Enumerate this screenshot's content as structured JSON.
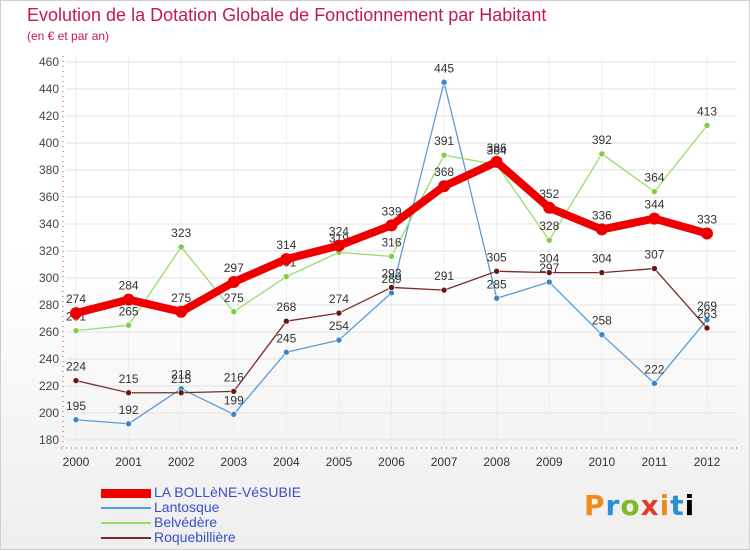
{
  "title": "Evolution de la Dotation Globale de Fonctionnement par Habitant",
  "subtitle": "(en € et par an)",
  "logo": [
    "P",
    "r",
    "o",
    "x",
    "i",
    "t",
    "i"
  ],
  "chart_data": {
    "type": "line",
    "x": [
      "2000",
      "2001",
      "2002",
      "2003",
      "2004",
      "2005",
      "2006",
      "2007",
      "2008",
      "2009",
      "2010",
      "2011",
      "2012"
    ],
    "ylim": [
      180,
      460
    ],
    "yticks": [
      180,
      200,
      220,
      240,
      260,
      280,
      300,
      320,
      340,
      360,
      380,
      400,
      420,
      440,
      460
    ],
    "grid": true,
    "legend_position": "bottom-left",
    "series": [
      {
        "name": "Lantosque",
        "color": "#5b9bd5",
        "marker": "#3a86c8",
        "width": 1.3,
        "label": true,
        "values": [
          195,
          192,
          218,
          199,
          245,
          254,
          289,
          445,
          285,
          297,
          258,
          222,
          269
        ]
      },
      {
        "name": "Belvédère",
        "color": "#9adb6e",
        "marker": "#7ccf3e",
        "width": 1.3,
        "label": true,
        "values": [
          261,
          265,
          323,
          275,
          301,
          319,
          316,
          391,
          384,
          328,
          392,
          364,
          413
        ]
      },
      {
        "name": "Roquebillière",
        "color": "#7b2b2b",
        "marker": "#6b1515",
        "width": 1.3,
        "label": true,
        "values": [
          224,
          215,
          215,
          216,
          268,
          274,
          293,
          291,
          305,
          304,
          304,
          307,
          263
        ]
      },
      {
        "name": "LA BOLLèNE-VéSUBIE",
        "color": "#ee0000",
        "marker": "#ee0000",
        "width": 8,
        "label": true,
        "values": [
          274,
          284,
          275,
          297,
          314,
          324,
          339,
          368,
          386,
          352,
          336,
          344,
          333
        ]
      }
    ]
  }
}
